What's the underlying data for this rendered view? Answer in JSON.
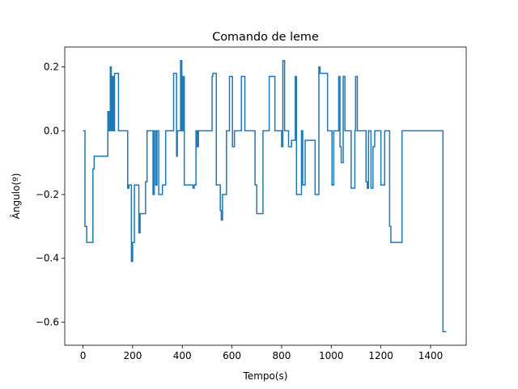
{
  "chart_data": {
    "type": "line",
    "title": "Comando de leme",
    "xlabel": "Tempo(s)",
    "ylabel": "Ângulo(º)",
    "x": [
      0,
      8,
      8,
      15,
      15,
      40,
      40,
      45,
      45,
      100,
      100,
      105,
      105,
      110,
      110,
      114,
      114,
      118,
      118,
      123,
      123,
      127,
      127,
      143,
      143,
      180,
      180,
      185,
      185,
      195,
      195,
      200,
      200,
      207,
      207,
      225,
      225,
      230,
      230,
      252,
      252,
      258,
      258,
      282,
      282,
      287,
      287,
      293,
      293,
      298,
      298,
      305,
      305,
      320,
      320,
      333,
      333,
      365,
      365,
      377,
      377,
      380,
      380,
      393,
      393,
      398,
      398,
      403,
      403,
      408,
      408,
      443,
      443,
      448,
      448,
      455,
      455,
      460,
      460,
      465,
      465,
      520,
      520,
      523,
      523,
      537,
      537,
      553,
      553,
      557,
      557,
      562,
      562,
      578,
      578,
      590,
      590,
      602,
      602,
      610,
      610,
      638,
      638,
      652,
      652,
      693,
      693,
      700,
      700,
      725,
      725,
      750,
      750,
      773,
      773,
      800,
      800,
      805,
      805,
      812,
      812,
      828,
      828,
      840,
      840,
      855,
      855,
      860,
      860,
      880,
      880,
      885,
      885,
      895,
      895,
      935,
      935,
      950,
      950,
      955,
      955,
      985,
      985,
      1003,
      1003,
      1010,
      1010,
      1030,
      1030,
      1035,
      1035,
      1040,
      1040,
      1048,
      1048,
      1055,
      1055,
      1080,
      1080,
      1095,
      1095,
      1098,
      1098,
      1105,
      1105,
      1140,
      1140,
      1145,
      1145,
      1150,
      1150,
      1160,
      1160,
      1168,
      1168,
      1175,
      1175,
      1200,
      1200,
      1215,
      1215,
      1235,
      1235,
      1240,
      1240,
      1285,
      1285,
      1450,
      1450,
      1463
    ],
    "series": [
      {
        "color": "#1f77b4",
        "values": [
          0,
          0,
          -0.3,
          -0.3,
          -0.35,
          -0.35,
          -0.12,
          -0.12,
          -0.08,
          -0.08,
          0.06,
          0.06,
          0,
          0,
          0.2,
          0.2,
          0,
          0,
          0.17,
          0.17,
          0,
          0,
          0.18,
          0.18,
          0,
          0,
          -0.18,
          -0.18,
          -0.17,
          -0.17,
          -0.41,
          -0.41,
          -0.35,
          -0.35,
          -0.17,
          -0.17,
          -0.32,
          -0.32,
          -0.26,
          -0.26,
          -0.16,
          -0.16,
          0,
          0,
          -0.2,
          -0.2,
          0,
          0,
          -0.17,
          -0.17,
          0,
          0,
          -0.2,
          -0.2,
          -0.17,
          -0.17,
          0,
          0,
          0.18,
          0.18,
          -0.08,
          -0.08,
          0,
          0,
          0.22,
          0.22,
          0,
          0,
          0.17,
          0.17,
          -0.17,
          -0.17,
          -0.18,
          -0.18,
          -0.17,
          -0.17,
          0,
          0,
          -0.05,
          -0.05,
          0,
          0,
          0.17,
          0.17,
          0.18,
          0.18,
          -0.17,
          -0.17,
          -0.25,
          -0.25,
          -0.28,
          -0.28,
          -0.2,
          -0.2,
          0,
          0,
          0.17,
          0.17,
          -0.05,
          -0.05,
          0,
          0,
          0.17,
          0.17,
          0,
          0,
          -0.17,
          -0.17,
          -0.26,
          -0.26,
          0,
          0,
          0.17,
          0.17,
          0,
          0,
          -0.05,
          -0.05,
          0.22,
          0.22,
          0,
          0,
          -0.05,
          -0.05,
          -0.03,
          -0.03,
          0.17,
          0.17,
          -0.2,
          -0.2,
          0,
          0,
          -0.17,
          -0.17,
          -0.03,
          -0.03,
          -0.2,
          -0.2,
          0.2,
          0.2,
          0.18,
          0.18,
          0,
          0,
          -0.17,
          -0.17,
          0,
          0,
          0.17,
          0.17,
          -0.05,
          -0.05,
          -0.1,
          -0.1,
          0.17,
          0.17,
          0,
          0,
          -0.18,
          -0.18,
          0,
          0,
          0.17,
          0.17,
          0,
          0,
          -0.16,
          -0.16,
          -0.18,
          -0.18,
          0,
          0,
          -0.18,
          -0.18,
          -0.05,
          -0.05,
          0,
          0,
          -0.17,
          -0.17,
          0,
          0,
          -0.3,
          -0.3,
          -0.35,
          -0.35,
          0,
          0,
          -0.63,
          -0.63
        ]
      }
    ],
    "xlim": [
      -73.5,
      1543.5
    ],
    "ylim": [
      -0.6725,
      0.2625
    ],
    "xticks": [
      0,
      200,
      400,
      600,
      800,
      1000,
      1200,
      1400
    ],
    "yticks": [
      0.2,
      {
        "value": 0,
        "label": "0.0"
      },
      {
        "value": -0.2,
        "label": "−0.2"
      },
      {
        "value": -0.4,
        "label": "−0.4"
      },
      {
        "value": -0.6,
        "label": "−0.6"
      }
    ]
  }
}
